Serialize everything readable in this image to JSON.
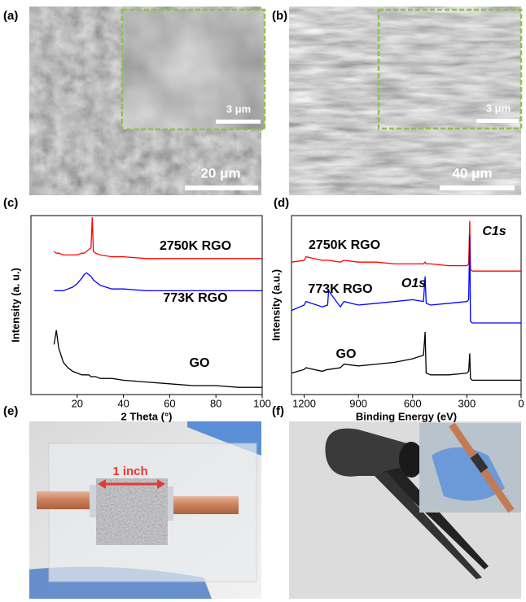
{
  "panels": {
    "a": {
      "label": "(a)",
      "scale_bar": "20 μm",
      "inset_scale_bar": "3 μm"
    },
    "b": {
      "label": "(b)",
      "scale_bar": "40 μm",
      "inset_scale_bar": "3 μm"
    },
    "e": {
      "label": "(e)",
      "annotation": "1 inch"
    },
    "f": {
      "label": "(f)"
    }
  },
  "chart_data": [
    {
      "type": "line",
      "panel_label": "(c)",
      "x_label": "2 Theta (°)",
      "y_label": "Intensity (a. u.)",
      "xlim": [
        0,
        100
      ],
      "xticks": [
        20,
        40,
        60,
        80,
        100
      ],
      "ylim": [
        0,
        100
      ],
      "x": [
        10,
        11,
        12,
        14,
        16,
        18,
        20,
        22,
        23,
        24,
        25,
        26,
        26.5,
        27,
        28,
        30,
        35,
        40,
        50,
        60,
        70,
        80,
        90,
        100
      ],
      "series": [
        {
          "name": "2750K RGO",
          "color": "#ff0000",
          "values": [
            80,
            79,
            79,
            78,
            78,
            78,
            78,
            79,
            79,
            80,
            81,
            82,
            99,
            80,
            79,
            78,
            77,
            77,
            76,
            76,
            76,
            76,
            76,
            76
          ]
        },
        {
          "name": "773K RGO",
          "color": "#0000ff",
          "values": [
            58,
            58,
            58,
            58,
            59,
            60,
            62,
            65,
            67,
            68,
            67,
            66,
            65,
            64,
            63,
            61,
            59,
            59,
            58,
            58,
            58,
            58,
            58,
            58
          ]
        },
        {
          "name": "GO",
          "color": "#000000",
          "values": [
            28,
            36,
            26,
            18,
            15,
            13,
            12,
            11,
            11,
            11,
            11,
            10,
            10,
            10,
            10,
            9,
            9,
            8,
            7,
            6,
            5,
            5,
            4,
            4
          ]
        }
      ]
    },
    {
      "type": "line",
      "panel_label": "(d)",
      "x_label": "Binding Energy (eV)",
      "y_label": "Intensity (a.u.)",
      "xlim": [
        1270,
        0
      ],
      "xticks": [
        1200,
        900,
        600,
        300,
        0
      ],
      "ylim": [
        0,
        100
      ],
      "x": [
        1270,
        1200,
        1190,
        1100,
        1070,
        1065,
        1000,
        980,
        900,
        800,
        700,
        600,
        540,
        531,
        525,
        500,
        400,
        300,
        290,
        284,
        280,
        270,
        200,
        100,
        0
      ],
      "series": [
        {
          "name": "2750K RGO",
          "color": "#ff0000",
          "values": [
            74,
            75,
            77,
            75,
            75,
            75,
            74,
            75,
            74,
            74,
            73,
            73,
            73,
            74,
            73,
            73,
            72,
            72,
            73,
            97,
            70,
            69,
            69,
            69,
            69
          ]
        },
        {
          "name": "773K RGO",
          "color": "#0000ff",
          "values": [
            47,
            50,
            52,
            49,
            50,
            58,
            49,
            52,
            50,
            51,
            52,
            53,
            52,
            66,
            51,
            50,
            51,
            52,
            53,
            89,
            41,
            40,
            40,
            40,
            40
          ]
        },
        {
          "name": "GO",
          "color": "#000000",
          "values": [
            12,
            14,
            15,
            13,
            14,
            14,
            15,
            17,
            16,
            17,
            18,
            20,
            22,
            35,
            12,
            11,
            11,
            12,
            13,
            23,
            9,
            8,
            8,
            8,
            8
          ]
        }
      ],
      "annotations": [
        "C1s",
        "O1s"
      ]
    }
  ]
}
